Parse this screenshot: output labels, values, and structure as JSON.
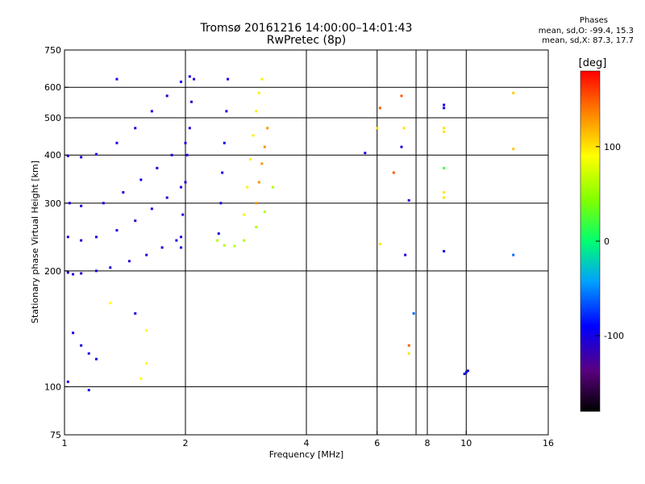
{
  "header": {
    "title_line1": "Tromsø 20161216 14:00:00–14:01:43",
    "title_line2": "RwPretec (8p)"
  },
  "phases": {
    "heading": "Phases",
    "line_o": "mean, sd,O: -99.4, 15.3",
    "line_x": "mean, sd,X:  87.3, 17.7"
  },
  "colorbar": {
    "unit": "[deg]",
    "ticks": [
      {
        "value": 100,
        "label": "100"
      },
      {
        "value": 0,
        "label": "0"
      },
      {
        "value": -100,
        "label": "-100"
      }
    ],
    "range": [
      -180,
      180
    ]
  },
  "chart_data": {
    "type": "scatter",
    "title": "Tromsø 20161216 14:00:00–14:01:43",
    "subtitle": "RwPretec (8p)",
    "xlabel": "Frequency [MHz]",
    "ylabel": "Stationary phase Virtual Height [km]",
    "x_scale": "log",
    "y_scale": "log",
    "xlim": [
      1,
      16
    ],
    "ylim": [
      75,
      750
    ],
    "x_ticks": [
      1,
      2,
      4,
      6,
      8,
      10,
      16
    ],
    "y_ticks": [
      75,
      100,
      200,
      300,
      400,
      500,
      600,
      750
    ],
    "x_gridlines": [
      1,
      2,
      4,
      6,
      7.5,
      8,
      10,
      16
    ],
    "y_gridlines": [
      100,
      200,
      300,
      400,
      500,
      600
    ],
    "color_scale": "phase in degrees, rainbow from -180 (black/purple) to 180 (red)",
    "traces": [
      {
        "name": "",
        "phase": -105,
        "x": [
          1.02,
          1.05,
          1.1,
          1.2,
          1.3,
          1.45,
          1.6,
          1.75,
          1.9,
          1.95
        ],
        "y": [
          198,
          196,
          197,
          200,
          204,
          212,
          220,
          230,
          240,
          245
        ]
      },
      {
        "name": "",
        "phase": -105,
        "x": [
          1.02,
          1.1,
          1.2,
          1.35,
          1.5,
          1.65,
          1.8,
          1.95
        ],
        "y": [
          245,
          240,
          245,
          255,
          270,
          290,
          310,
          330
        ]
      },
      {
        "name": "",
        "phase": -100,
        "x": [
          1.03,
          1.1,
          1.25,
          1.4,
          1.55,
          1.7,
          1.85,
          2.0
        ],
        "y": [
          300,
          295,
          300,
          320,
          345,
          370,
          400,
          430
        ]
      },
      {
        "name": "",
        "phase": -100,
        "x": [
          1.02,
          1.1,
          1.2,
          1.35,
          1.5,
          1.65,
          1.8,
          1.95,
          2.05
        ],
        "y": [
          398,
          395,
          402,
          430,
          470,
          520,
          570,
          620,
          640
        ]
      },
      {
        "name": "",
        "phase": -105,
        "x": [
          1.95,
          1.97,
          2.0,
          2.02,
          2.05,
          2.07,
          2.1
        ],
        "y": [
          230,
          280,
          340,
          400,
          470,
          550,
          630
        ]
      },
      {
        "name": "",
        "phase": -100,
        "x": [
          2.42,
          2.45,
          2.47,
          2.5,
          2.53,
          2.55
        ],
        "y": [
          250,
          300,
          360,
          430,
          520,
          630
        ]
      },
      {
        "name": "",
        "phase": 60,
        "x": [
          2.4,
          2.5,
          2.65,
          2.8,
          3.0,
          3.15,
          3.3
        ],
        "y": [
          240,
          233,
          232,
          240,
          260,
          285,
          330
        ]
      },
      {
        "name": "",
        "phase": 95,
        "x": [
          2.8,
          2.85,
          2.9,
          2.95,
          3.0,
          3.05,
          3.1
        ],
        "y": [
          280,
          330,
          390,
          450,
          520,
          580,
          630
        ]
      },
      {
        "name": "",
        "phase": 130,
        "x": [
          3.0,
          3.05,
          3.1,
          3.15,
          3.2
        ],
        "y": [
          300,
          340,
          380,
          420,
          470
        ]
      },
      {
        "name": "",
        "phase": -100,
        "x": [
          1.05,
          1.1,
          1.15,
          1.2
        ],
        "y": [
          138,
          128,
          122,
          118
        ]
      },
      {
        "name": "",
        "phase": -100,
        "x": [
          8.8,
          8.8,
          8.8
        ],
        "y": [
          540,
          530,
          225
        ]
      },
      {
        "name": "",
        "phase": 100,
        "x": [
          8.8,
          8.8,
          8.8,
          8.8
        ],
        "y": [
          470,
          460,
          320,
          310
        ]
      },
      {
        "name": "",
        "phase": 20,
        "x": [
          8.8
        ],
        "y": [
          370
        ]
      },
      {
        "name": "",
        "phase": -100,
        "x": [
          7.2,
          6.9,
          7.05,
          5.6
        ],
        "y": [
          305,
          420,
          220,
          405
        ]
      },
      {
        "name": "",
        "phase": 150,
        "x": [
          6.1,
          6.9,
          6.6,
          7.2
        ],
        "y": [
          530,
          570,
          360,
          128
        ]
      },
      {
        "name": "",
        "phase": 100,
        "x": [
          6.0,
          7.0,
          7.2,
          6.1
        ],
        "y": [
          470,
          470,
          122,
          235
        ]
      },
      {
        "name": "",
        "phase": 110,
        "x": [
          13.1,
          13.1
        ],
        "y": [
          580,
          415
        ]
      },
      {
        "name": "",
        "phase": -60,
        "x": [
          13.1,
          7.4
        ],
        "y": [
          220,
          155
        ]
      },
      {
        "name": "",
        "phase": -100,
        "x": [
          10.0,
          10.1,
          9.9
        ],
        "y": [
          109,
          110,
          108
        ]
      },
      {
        "name": "",
        "phase": 90,
        "x": [
          1.55,
          1.6,
          1.3,
          1.6
        ],
        "y": [
          105,
          115,
          165,
          140
        ]
      },
      {
        "name": "",
        "phase": -100,
        "x": [
          1.02,
          1.15,
          1.35,
          1.5
        ],
        "y": [
          103,
          98,
          630,
          155
        ]
      }
    ]
  }
}
